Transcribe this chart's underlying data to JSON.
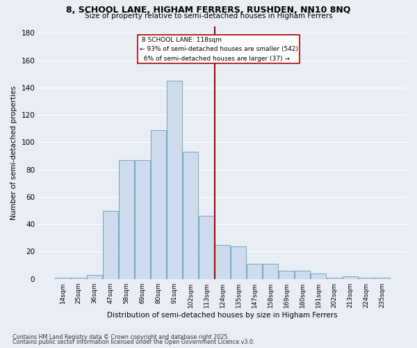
{
  "title1": "8, SCHOOL LANE, HIGHAM FERRERS, RUSHDEN, NN10 8NQ",
  "title2": "Size of property relative to semi-detached houses in Higham Ferrers",
  "xlabel": "Distribution of semi-detached houses by size in Higham Ferrers",
  "ylabel": "Number of semi-detached properties",
  "categories": [
    "14sqm",
    "25sqm",
    "36sqm",
    "47sqm",
    "58sqm",
    "69sqm",
    "80sqm",
    "91sqm",
    "102sqm",
    "113sqm",
    "124sqm",
    "135sqm",
    "147sqm",
    "158sqm",
    "169sqm",
    "180sqm",
    "191sqm",
    "202sqm",
    "213sqm",
    "224sqm",
    "235sqm"
  ],
  "values": [
    1,
    1,
    3,
    50,
    87,
    87,
    109,
    145,
    93,
    46,
    25,
    24,
    11,
    11,
    6,
    6,
    4,
    1,
    2,
    1,
    1
  ],
  "bar_color": "#ccdcec",
  "bar_edge_color": "#6699bb",
  "property_label": "8 SCHOOL LANE: 118sqm",
  "pct_smaller": 93,
  "count_smaller": 542,
  "pct_larger": 6,
  "count_larger": 37,
  "vline_color": "#aa0000",
  "box_edge_color": "#aa0000",
  "ylim": [
    0,
    180
  ],
  "yticks": [
    0,
    20,
    40,
    60,
    80,
    100,
    120,
    140,
    160,
    180
  ],
  "footnote1": "Contains HM Land Registry data © Crown copyright and database right 2025.",
  "footnote2": "Contains public sector information licensed under the Open Government Licence v3.0.",
  "bg_color": "#e8eef4",
  "grid_color": "#ffffff"
}
